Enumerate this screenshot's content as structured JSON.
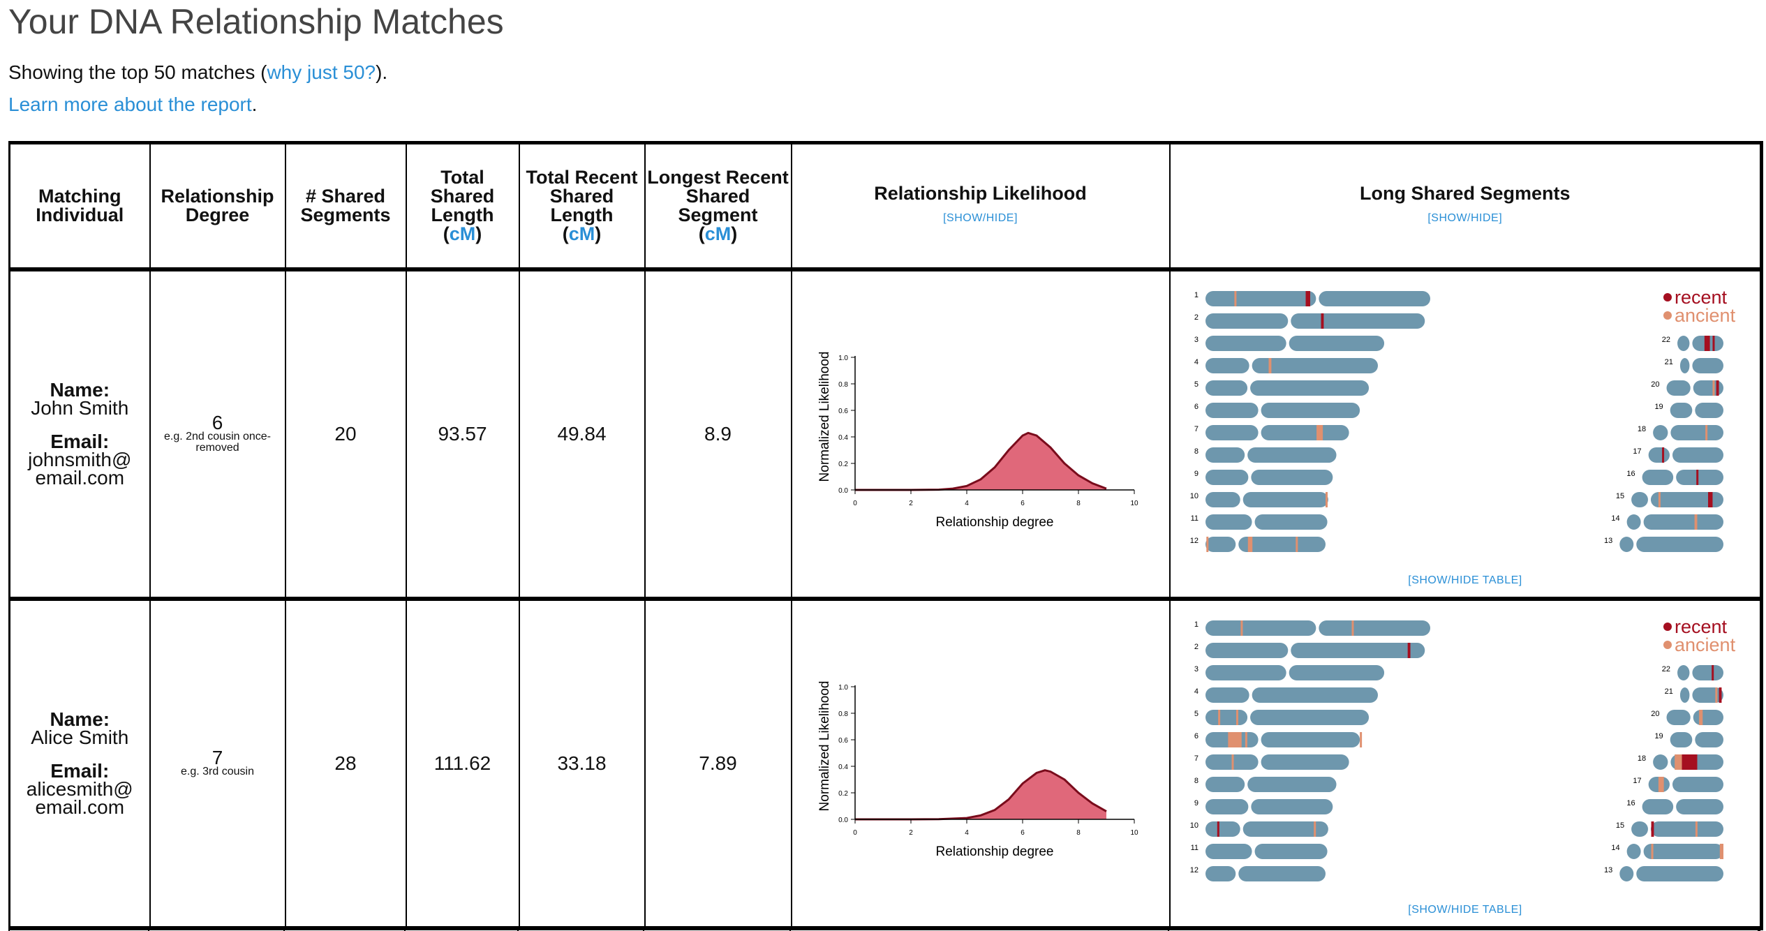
{
  "page": {
    "title": "Your DNA Relationship Matches",
    "showing_prefix": "Showing the top 50 matches (",
    "why_link": "why just 50?",
    "showing_suffix": ").",
    "learn_more_link": "Learn more about the report",
    "learn_more_suffix": "."
  },
  "colors": {
    "link": "#2a8fd6",
    "recent": "#a50f20",
    "ancient": "#e0906f",
    "chromosome": "#6e97ad",
    "likelihood_fill": "#e0687a",
    "likelihood_line": "#7a0c1c"
  },
  "table": {
    "headers": {
      "matching_individual": "Matching Individual",
      "relationship_degree": "Relationship Degree",
      "shared_segments": "# Shared Segments",
      "total_shared_length": "Total Shared Length",
      "total_recent_shared_length": "Total Recent Shared Length",
      "longest_recent_segment": "Longest Recent Shared Segment",
      "cm_unit": "cM",
      "relationship_likelihood": "Relationship Likelihood",
      "long_shared_segments": "Long Shared Segments",
      "show_hide": "[SHOW/HIDE]"
    },
    "labels": {
      "name": "Name:",
      "email": "Email:",
      "show_hide_table": "[SHOW/HIDE TABLE]",
      "legend_recent": "recent",
      "legend_ancient": "ancient"
    },
    "rows": [
      {
        "name": "John Smith",
        "email": "johnsmith@email.com",
        "degree": "6",
        "degree_example": "e.g. 2nd cousin once-removed",
        "shared_segments": "20",
        "total_shared_length": "93.57",
        "total_recent_shared_length": "49.84",
        "longest_recent_segment": "8.9"
      },
      {
        "name": "Alice Smith",
        "email": "alicesmith@email.com",
        "degree": "7",
        "degree_example": "e.g. 3rd cousin",
        "shared_segments": "28",
        "total_shared_length": "111.62",
        "total_recent_shared_length": "33.18",
        "longest_recent_segment": "7.89"
      }
    ]
  },
  "chart_data": [
    {
      "type": "area",
      "xlabel": "Relationship degree",
      "ylabel": "Normalized Likelihood",
      "xlim": [
        0,
        10
      ],
      "ylim": [
        0,
        1.0
      ],
      "xticks": [
        "0",
        "2",
        "4",
        "6",
        "8",
        "10"
      ],
      "yticks": [
        "0.0",
        "0.2",
        "0.4",
        "0.6",
        "0.8",
        "1.0"
      ],
      "x": [
        0,
        1,
        2,
        3,
        3.5,
        4,
        4.5,
        5,
        5.5,
        6,
        6.2,
        6.5,
        7,
        7.5,
        8,
        8.5,
        9
      ],
      "y": [
        0,
        0,
        0,
        0.002,
        0.01,
        0.03,
        0.08,
        0.17,
        0.3,
        0.41,
        0.43,
        0.41,
        0.32,
        0.2,
        0.11,
        0.05,
        0.01
      ]
    },
    {
      "type": "area",
      "xlabel": "Relationship degree",
      "ylabel": "Normalized Likelihood",
      "xlim": [
        0,
        10
      ],
      "ylim": [
        0,
        1.0
      ],
      "xticks": [
        "0",
        "2",
        "4",
        "6",
        "8",
        "10"
      ],
      "yticks": [
        "0.0",
        "0.2",
        "0.4",
        "0.6",
        "0.8",
        "1.0"
      ],
      "x": [
        0,
        1,
        2,
        3,
        4,
        4.5,
        5,
        5.5,
        6,
        6.5,
        6.8,
        7,
        7.5,
        8,
        8.5,
        9
      ],
      "y": [
        0,
        0,
        0,
        0.001,
        0.01,
        0.03,
        0.07,
        0.15,
        0.27,
        0.35,
        0.37,
        0.36,
        0.3,
        0.2,
        0.12,
        0.06
      ]
    }
  ],
  "segments": {
    "chromosome_lengths": [
      249,
      243,
      198,
      191,
      181,
      171,
      159,
      145,
      141,
      136,
      135,
      133,
      115,
      107,
      102,
      90,
      83,
      78,
      59,
      63,
      48,
      51
    ],
    "centromeres": [
      124,
      93,
      91,
      50,
      48,
      60,
      60,
      45,
      49,
      40,
      53,
      35,
      17,
      17,
      20,
      36,
      25,
      18,
      26,
      28,
      12,
      15
    ],
    "rows": [
      {
        "recent": [
          [
            1,
            111,
            116
          ],
          [
            2,
            128,
            131
          ],
          [
            22,
            30,
            36
          ],
          [
            22,
            39,
            40
          ],
          [
            20,
            55,
            58
          ],
          [
            16,
            60,
            62
          ],
          [
            15,
            85,
            90
          ],
          [
            17,
            15,
            17
          ]
        ],
        "ancient": [
          [
            1,
            32,
            34
          ],
          [
            4,
            70,
            73
          ],
          [
            7,
            123,
            130
          ],
          [
            12,
            1,
            3
          ],
          [
            12,
            47,
            52
          ],
          [
            12,
            100,
            102
          ],
          [
            10,
            133,
            135
          ],
          [
            20,
            51,
            52
          ],
          [
            18,
            58,
            60
          ],
          [
            14,
            75,
            78
          ],
          [
            15,
            30,
            32
          ]
        ]
      },
      {
        "recent": [
          [
            2,
            224,
            227
          ],
          [
            22,
            38,
            40
          ],
          [
            21,
            43,
            46
          ],
          [
            18,
            32,
            49
          ],
          [
            15,
            22,
            25
          ],
          [
            10,
            13,
            15
          ]
        ],
        "ancient": [
          [
            1,
            39,
            41
          ],
          [
            1,
            162,
            164
          ],
          [
            5,
            14,
            16
          ],
          [
            5,
            34,
            36
          ],
          [
            6,
            25,
            40
          ],
          [
            6,
            44,
            46
          ],
          [
            6,
            171,
            172
          ],
          [
            7,
            29,
            31
          ],
          [
            21,
            39,
            41
          ],
          [
            20,
            36,
            40
          ],
          [
            18,
            24,
            32
          ],
          [
            17,
            11,
            17
          ],
          [
            10,
            120,
            122
          ],
          [
            15,
            71,
            73
          ],
          [
            14,
            27,
            29
          ],
          [
            14,
            103,
            107
          ]
        ]
      }
    ]
  }
}
